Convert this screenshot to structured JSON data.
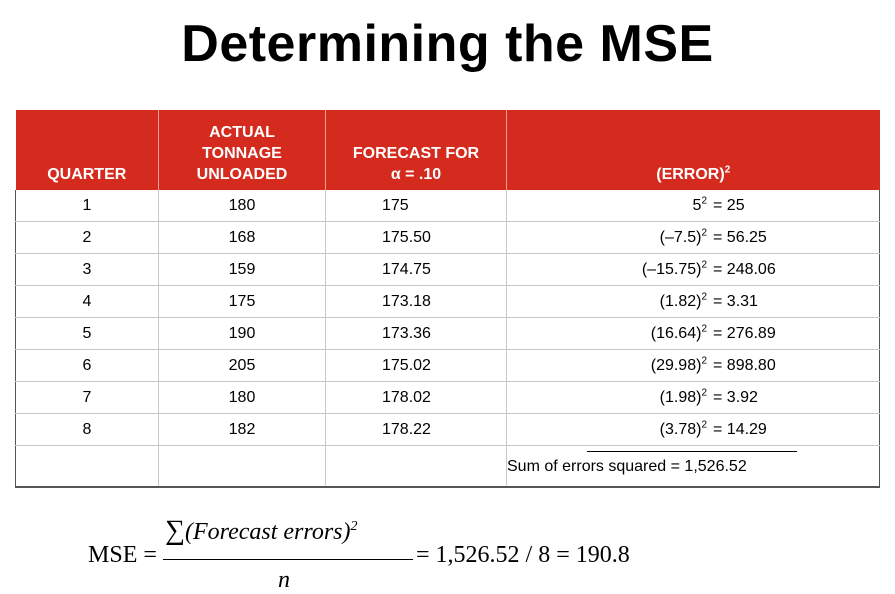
{
  "title": "Determining the MSE",
  "table": {
    "headers": {
      "quarter": "QUARTER",
      "actual_line1": "ACTUAL",
      "actual_line2": "TONNAGE",
      "actual_line3": "UNLOADED",
      "forecast_line1": "FORECAST FOR",
      "forecast_line2": "α = .10",
      "error": "(ERROR)",
      "error_sup": "2"
    },
    "rows": [
      {
        "quarter": "1",
        "actual": "180",
        "forecast": "175",
        "err_base": "5",
        "err_value": "= 25"
      },
      {
        "quarter": "2",
        "actual": "168",
        "forecast": "175.50",
        "err_base": "(–7.5)",
        "err_value": "= 56.25"
      },
      {
        "quarter": "3",
        "actual": "159",
        "forecast": "174.75",
        "err_base": "(–15.75)",
        "err_value": "= 248.06"
      },
      {
        "quarter": "4",
        "actual": "175",
        "forecast": "173.18",
        "err_base": "(1.82)",
        "err_value": "= 3.31"
      },
      {
        "quarter": "5",
        "actual": "190",
        "forecast": "173.36",
        "err_base": "(16.64)",
        "err_value": "= 276.89"
      },
      {
        "quarter": "6",
        "actual": "205",
        "forecast": "175.02",
        "err_base": "(29.98)",
        "err_value": "= 898.80"
      },
      {
        "quarter": "7",
        "actual": "180",
        "forecast": "178.02",
        "err_base": "(1.98)",
        "err_value": "= 3.92"
      },
      {
        "quarter": "8",
        "actual": "182",
        "forecast": "178.22",
        "err_base": "(3.78)",
        "err_value": "= 14.29"
      }
    ],
    "err_sup": "2",
    "sum_label": "Sum of errors squared",
    "sum_value": "= 1,526.52"
  },
  "formula": {
    "lhs": "MSE =",
    "sigma": "∑",
    "numerator": "(Forecast errors)",
    "numerator_sup": "2",
    "denominator": "n",
    "rhs": "= 1,526.52 / 8 = 190.8"
  }
}
